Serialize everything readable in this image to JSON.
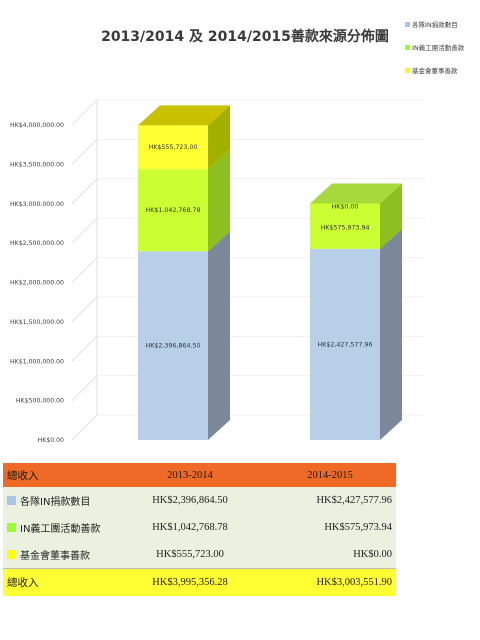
{
  "chart_data": {
    "type": "bar",
    "stacked": true,
    "title": "2013/2014 及 2014/2015善款來源分佈圖",
    "categories": [
      "2013/2014",
      "2014/2015"
    ],
    "series": [
      {
        "name": "各隊IN捐款數目",
        "color": "#b8cfe8",
        "values": [
          2396864.5,
          2427577.96
        ],
        "labels": [
          "HK$2,396,864.50",
          "HK$2,427,577.96"
        ]
      },
      {
        "name": "IN義工團活動善款",
        "color": "#ccff33",
        "values": [
          1042768.78,
          575973.94
        ],
        "labels": [
          "HK$1,042,768.78",
          "HK$575,973.94"
        ]
      },
      {
        "name": "基金會董事善款",
        "color": "#ffff33",
        "values": [
          555723.0,
          0.0
        ],
        "labels": [
          "HK$555,723.00",
          "HK$0.00"
        ]
      }
    ],
    "y_ticks": [
      "HK$0.00",
      "HK$500,000.00",
      "HK$1,000,000.00",
      "HK$1,500,000.00",
      "HK$2,000,000.00",
      "HK$2,500,000.00",
      "HK$3,000,000.00",
      "HK$3,500,000.00",
      "HK$4,000,000.00"
    ],
    "ylim": [
      0,
      4000000
    ],
    "legend_position": "top-right"
  },
  "table": {
    "header": [
      "總收入",
      "2013-2014",
      "2014-2015"
    ],
    "rows": [
      {
        "label": "各隊IN捐款數目",
        "color": "#a9c4e4",
        "v1": "HK$2,396,864.50",
        "v2": "HK$2,427,577.96"
      },
      {
        "label": "IN義工團活動善款",
        "color": "#99ff33",
        "v1": "HK$1,042,768.78",
        "v2": "HK$575,973.94"
      },
      {
        "label": "基金會董事善款",
        "color": "#ffff00",
        "v1": "HK$555,723.00",
        "v2": "HK$0.00"
      }
    ],
    "total": {
      "label": "總收入",
      "v1": "HK$3,995,356.28",
      "v2": "HK$3,003,551.90"
    }
  }
}
